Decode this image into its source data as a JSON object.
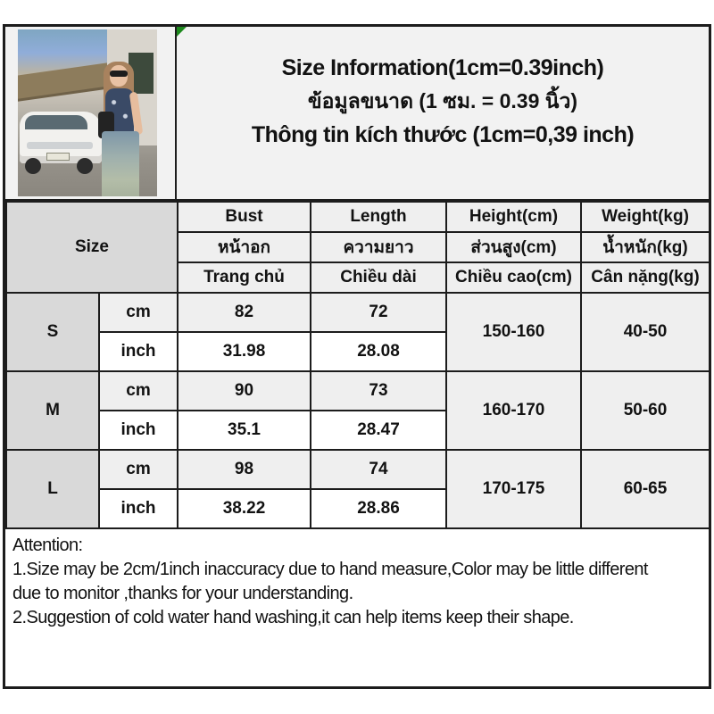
{
  "title": {
    "en": "Size Information(1cm=0.39inch)",
    "th": "ข้อมูลขนาด (1 ซม. = 0.39 นิ้ว)",
    "vi": "Thông tin kích thước (1cm=0,39 inch)"
  },
  "table": {
    "size_label": "Size",
    "columns": {
      "bust": {
        "en": "Bust",
        "th": "หน้าอก",
        "vi": "Trang chủ"
      },
      "length": {
        "en": "Length",
        "th": "ความยาว",
        "vi": "Chiều dài"
      },
      "height": {
        "en": "Height(cm)",
        "th": "ส่วนสูง(cm)",
        "vi": "Chiều cao(cm)"
      },
      "weight": {
        "en": "Weight(kg)",
        "th": "น้ำหนัก(kg)",
        "vi": "Cân nặng(kg)"
      }
    },
    "units": {
      "cm": "cm",
      "inch": "inch"
    },
    "rows": [
      {
        "size": "S",
        "bust_cm": "82",
        "length_cm": "72",
        "bust_inch": "31.98",
        "length_inch": "28.08",
        "height": "150-160",
        "weight": "40-50"
      },
      {
        "size": "M",
        "bust_cm": "90",
        "length_cm": "73",
        "bust_inch": "35.1",
        "length_inch": "28.47",
        "height": "160-170",
        "weight": "50-60"
      },
      {
        "size": "L",
        "bust_cm": "98",
        "length_cm": "74",
        "bust_inch": "38.22",
        "length_inch": "28.86",
        "height": "170-175",
        "weight": "60-65"
      }
    ]
  },
  "attention": {
    "lines": [
      "Attention:",
      "1.Size may be 2cm/1inch inaccuracy due to hand measure,Color may be little different",
      "due to monitor ,thanks for your understanding.",
      "2.Suggestion of cold water hand washing,it can help items keep their shape."
    ]
  },
  "colors": {
    "border": "#1c1c1c",
    "cell_gray": "#efefef",
    "cell_dark_gray": "#d9d9d9",
    "title_bg": "#f2f2f2",
    "green_marker": "#1e8a1e"
  }
}
